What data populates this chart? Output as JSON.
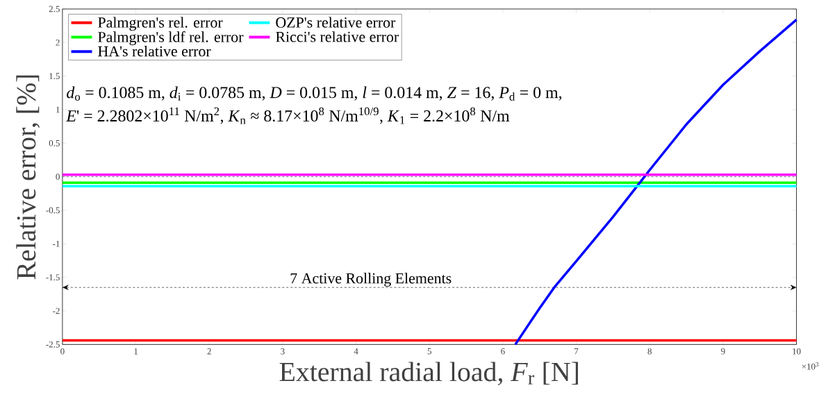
{
  "chart_data": {
    "type": "line",
    "xlabel": "External radial load, *F*$_{r}$  [N]",
    "ylabel": "Relative error, [%]",
    "xlim": [
      0,
      10
    ],
    "ylim": [
      -2.5,
      2.5
    ],
    "xticks": [
      0,
      1,
      2,
      3,
      4,
      5,
      6,
      7,
      8,
      9,
      10
    ],
    "yticks": [
      -2.5,
      -2,
      -1.5,
      -1,
      -0.5,
      0,
      0.5,
      1,
      1.5,
      2,
      2.5
    ],
    "series": [
      {
        "name": "Palmgren's rel. error",
        "color": "#ff0000",
        "x": [
          0,
          10
        ],
        "values": [
          -2.44,
          -2.44
        ]
      },
      {
        "name": "Palmgren's ldf rel. error",
        "color": "#00ff00",
        "x": [
          0,
          10
        ],
        "values": [
          -0.09,
          -0.09
        ]
      },
      {
        "name": "HA's relative error",
        "color": "#0000ff",
        "x": [
          6.17,
          6.5,
          6.7,
          7,
          7.5,
          7.83,
          8,
          8.5,
          9,
          9.5,
          10
        ],
        "values": [
          -2.5,
          -1.96,
          -1.65,
          -1.26,
          -0.6,
          -0.14,
          0.1,
          0.78,
          1.37,
          1.87,
          2.34
        ]
      },
      {
        "name": "OZP's relative error",
        "color": "#00ffff",
        "x": [
          0,
          10
        ],
        "values": [
          -0.14,
          -0.14
        ]
      },
      {
        "name": "Ricci's relative error",
        "color": "#ff00ff",
        "x": [
          0,
          10
        ],
        "values": [
          0.03,
          0.03
        ]
      }
    ],
    "ref_lines": [
      {
        "axis": "y",
        "value": 0,
        "color": "#808080",
        "line_style": "dashed"
      },
      {
        "axis": "y",
        "value": -1.65,
        "color": "#606060",
        "line_style": "dashed",
        "label": "7 Active Rolling Elements"
      }
    ],
    "annotations": [
      "×10$^{3}$",
      "*d*$_{o}$ = 0.1085 m, *d*$_{i}$ = 0.0785 m, *D* = 0.015 m, *l* = 0.014 m, *Z* = 16, *P*$_{d}$ = 0 m,",
      "*E*' = 2.2802×10$^{11}$ N/m$^{2}$, *K*$_{n}$ ≈ 8.17×10$^{8}$ N/m$^{10/9}$, *K*$_{1}$ = 2.2×10$^{8}$ N/m"
    ],
    "legend": "top left",
    "marker": "none",
    "line_style": "solid",
    "grid": false
  }
}
